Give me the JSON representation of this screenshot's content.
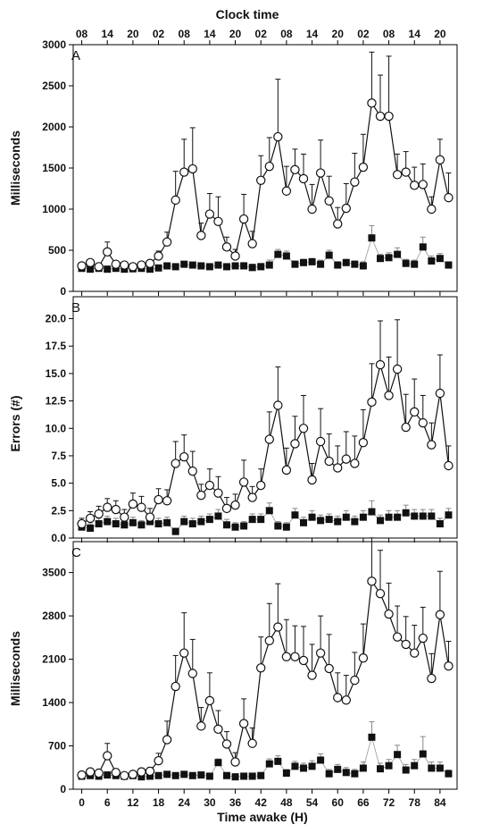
{
  "figure": {
    "top_axis_title": "Clock time",
    "bottom_axis_title": "Time awake (H)",
    "clock_ticks": [
      "08",
      "14",
      "20",
      "02",
      "08",
      "14",
      "20",
      "02",
      "08",
      "14",
      "20",
      "02",
      "08",
      "14",
      "20"
    ]
  },
  "chart_data": [
    {
      "type": "line",
      "panel": "A",
      "ylabel": "Milliseconds",
      "xlabel": "Time awake (H)",
      "xlim": [
        -2,
        88
      ],
      "ylim": [
        0,
        3000
      ],
      "yticks": [
        0,
        500,
        1000,
        1500,
        2000,
        2500,
        3000
      ],
      "ytick_labels": [
        "0",
        "500",
        "1000",
        "1500",
        "2000",
        "2500",
        "3000"
      ],
      "series": [
        {
          "marker": "open-circle",
          "x": [
            0,
            2,
            4,
            6,
            8,
            10,
            12,
            14,
            16,
            18,
            20,
            22,
            24,
            26,
            28,
            30,
            32,
            34,
            36,
            38,
            40,
            42,
            44,
            46,
            48,
            50,
            52,
            54,
            56,
            58,
            60,
            62,
            64,
            66,
            68,
            70,
            72,
            74,
            76,
            78,
            80,
            82,
            84,
            86
          ],
          "y": [
            310,
            350,
            300,
            480,
            330,
            320,
            300,
            320,
            340,
            430,
            600,
            1110,
            1450,
            1490,
            680,
            940,
            850,
            540,
            430,
            880,
            580,
            1350,
            1520,
            1880,
            1220,
            1480,
            1370,
            1000,
            1440,
            1100,
            820,
            1010,
            1330,
            1510,
            2290,
            2130,
            2130,
            1420,
            1450,
            1290,
            1300,
            1000,
            1600,
            1140
          ],
          "err": [
            20,
            20,
            20,
            120,
            30,
            30,
            20,
            30,
            40,
            60,
            120,
            350,
            400,
            500,
            150,
            250,
            300,
            120,
            80,
            300,
            150,
            300,
            350,
            700,
            300,
            250,
            300,
            300,
            400,
            300,
            200,
            300,
            350,
            400,
            620,
            500,
            730,
            250,
            250,
            220,
            250,
            150,
            250,
            300
          ]
        },
        {
          "marker": "filled-square",
          "x": [
            0,
            2,
            4,
            6,
            8,
            10,
            12,
            14,
            16,
            18,
            20,
            22,
            24,
            26,
            28,
            30,
            32,
            34,
            36,
            38,
            40,
            42,
            44,
            46,
            48,
            50,
            52,
            54,
            56,
            58,
            60,
            62,
            64,
            66,
            68,
            70,
            72,
            74,
            76,
            78,
            80,
            82,
            84,
            86
          ],
          "y": [
            280,
            270,
            280,
            270,
            280,
            270,
            275,
            280,
            270,
            285,
            310,
            300,
            330,
            320,
            310,
            300,
            320,
            300,
            310,
            310,
            290,
            300,
            320,
            450,
            430,
            330,
            350,
            360,
            330,
            440,
            320,
            350,
            330,
            310,
            650,
            400,
            410,
            450,
            340,
            330,
            540,
            370,
            400,
            320
          ],
          "err": [
            10,
            10,
            10,
            10,
            10,
            10,
            10,
            10,
            10,
            10,
            20,
            20,
            30,
            30,
            20,
            30,
            30,
            30,
            30,
            40,
            40,
            40,
            60,
            60,
            60,
            40,
            40,
            40,
            50,
            60,
            40,
            40,
            40,
            50,
            150,
            50,
            60,
            80,
            50,
            50,
            120,
            60,
            60,
            40
          ]
        }
      ]
    },
    {
      "type": "line",
      "panel": "B",
      "ylabel": "Errors (#)",
      "xlabel": "Time awake (H)",
      "xlim": [
        -2,
        88
      ],
      "ylim": [
        0,
        22
      ],
      "yticks": [
        0,
        2.5,
        5,
        7.5,
        10,
        12.5,
        15,
        17.5,
        20
      ],
      "ytick_labels": [
        "0.0",
        "2.5",
        "5.0",
        "7.5",
        "10.0",
        "12.5",
        "15.0",
        "17.5",
        "20.0"
      ],
      "series": [
        {
          "marker": "open-circle",
          "x": [
            0,
            2,
            4,
            6,
            8,
            10,
            12,
            14,
            16,
            18,
            20,
            22,
            24,
            26,
            28,
            30,
            32,
            34,
            36,
            38,
            40,
            42,
            44,
            46,
            48,
            50,
            52,
            54,
            56,
            58,
            60,
            62,
            64,
            66,
            68,
            70,
            72,
            74,
            76,
            78,
            80,
            82,
            84,
            86
          ],
          "y": [
            1.3,
            1.8,
            2.2,
            2.8,
            2.6,
            1.9,
            3.1,
            2.8,
            1.9,
            3.5,
            3.4,
            6.8,
            7.4,
            6.1,
            3.9,
            4.8,
            4.1,
            2.7,
            3.0,
            5.1,
            3.7,
            4.8,
            9.0,
            12.1,
            6.2,
            8.6,
            10.0,
            5.3,
            8.8,
            7.0,
            6.4,
            7.2,
            6.8,
            8.7,
            12.4,
            15.8,
            13.0,
            15.4,
            10.1,
            11.5,
            10.5,
            8.5,
            13.2,
            6.6
          ],
          "err": [
            0.5,
            0.6,
            0.7,
            0.8,
            0.8,
            0.7,
            1.0,
            1.0,
            0.8,
            1.0,
            1.0,
            2.0,
            2.0,
            1.8,
            1.0,
            1.5,
            1.5,
            1.0,
            1.0,
            2.0,
            1.0,
            1.5,
            2.5,
            3.5,
            2.0,
            2.5,
            3.0,
            1.5,
            3.0,
            2.5,
            2.0,
            2.5,
            2.5,
            3.0,
            3.5,
            4.0,
            3.5,
            4.5,
            3.0,
            3.0,
            2.5,
            2.0,
            3.5,
            1.8
          ]
        },
        {
          "marker": "filled-square",
          "x": [
            0,
            2,
            4,
            6,
            8,
            10,
            12,
            14,
            16,
            18,
            20,
            22,
            24,
            26,
            28,
            30,
            32,
            34,
            36,
            38,
            40,
            42,
            44,
            46,
            48,
            50,
            52,
            54,
            56,
            58,
            60,
            62,
            64,
            66,
            68,
            70,
            72,
            74,
            76,
            78,
            80,
            82,
            84,
            86
          ],
          "y": [
            1.0,
            0.9,
            1.3,
            1.5,
            1.3,
            1.2,
            1.4,
            1.2,
            1.5,
            1.3,
            1.4,
            0.6,
            1.5,
            1.3,
            1.5,
            1.7,
            2.0,
            1.2,
            1.0,
            1.1,
            1.7,
            1.7,
            2.5,
            1.1,
            1.0,
            2.1,
            1.4,
            1.9,
            1.6,
            1.7,
            1.5,
            1.9,
            1.5,
            1.9,
            2.4,
            1.6,
            1.9,
            1.9,
            2.3,
            2.0,
            2.0,
            2.0,
            1.3,
            2.1
          ],
          "err": [
            0.4,
            0.4,
            0.5,
            0.5,
            0.5,
            0.4,
            0.5,
            0.4,
            0.5,
            0.5,
            0.5,
            0.3,
            0.5,
            0.5,
            0.5,
            0.5,
            0.6,
            0.5,
            0.4,
            0.4,
            0.5,
            0.5,
            0.7,
            0.4,
            0.4,
            0.6,
            0.5,
            0.6,
            0.5,
            0.5,
            0.5,
            0.6,
            0.5,
            0.6,
            1.0,
            0.5,
            0.6,
            0.6,
            0.7,
            0.6,
            0.6,
            0.6,
            0.5,
            0.6
          ]
        }
      ]
    },
    {
      "type": "line",
      "panel": "C",
      "ylabel": "Milliseconds",
      "xlabel": "Time awake (H)",
      "xlim": [
        -2,
        88
      ],
      "ylim": [
        0,
        4000
      ],
      "yticks": [
        0,
        700,
        1400,
        2100,
        2800,
        3500
      ],
      "ytick_labels": [
        "0",
        "700",
        "1400",
        "2100",
        "2800",
        "3500"
      ],
      "xticks": [
        0,
        6,
        12,
        18,
        24,
        30,
        36,
        42,
        48,
        54,
        60,
        66,
        72,
        78,
        84
      ],
      "xtick_labels": [
        "0",
        "6",
        "12",
        "18",
        "24",
        "30",
        "36",
        "42",
        "48",
        "54",
        "60",
        "66",
        "72",
        "78",
        "84"
      ],
      "series": [
        {
          "marker": "open-circle",
          "x": [
            0,
            2,
            4,
            6,
            8,
            10,
            12,
            14,
            16,
            18,
            20,
            22,
            24,
            26,
            28,
            30,
            32,
            34,
            36,
            38,
            40,
            42,
            44,
            46,
            48,
            50,
            52,
            54,
            56,
            58,
            60,
            62,
            64,
            66,
            68,
            70,
            72,
            74,
            76,
            78,
            80,
            82,
            84,
            86
          ],
          "y": [
            230,
            280,
            260,
            540,
            270,
            220,
            240,
            280,
            290,
            460,
            800,
            1660,
            2200,
            1870,
            1020,
            1430,
            970,
            730,
            440,
            1060,
            740,
            1960,
            2400,
            2620,
            2140,
            2140,
            2080,
            1840,
            2200,
            1950,
            1480,
            1440,
            1760,
            2120,
            3360,
            3160,
            2830,
            2460,
            2340,
            2200,
            2440,
            1790,
            2820,
            1990
          ],
          "err": [
            30,
            40,
            40,
            200,
            60,
            40,
            40,
            60,
            60,
            120,
            300,
            500,
            650,
            550,
            300,
            450,
            300,
            200,
            150,
            400,
            250,
            500,
            600,
            700,
            600,
            500,
            550,
            500,
            600,
            550,
            400,
            400,
            450,
            550,
            700,
            700,
            500,
            500,
            450,
            450,
            500,
            400,
            700,
            400
          ]
        },
        {
          "marker": "filled-square",
          "x": [
            0,
            2,
            4,
            6,
            8,
            10,
            12,
            14,
            16,
            18,
            20,
            22,
            24,
            26,
            28,
            30,
            32,
            34,
            36,
            38,
            40,
            42,
            44,
            46,
            48,
            50,
            52,
            54,
            56,
            58,
            60,
            62,
            64,
            66,
            68,
            70,
            72,
            74,
            76,
            78,
            80,
            82,
            84,
            86
          ],
          "y": [
            210,
            220,
            210,
            230,
            220,
            210,
            220,
            200,
            210,
            220,
            240,
            220,
            240,
            220,
            230,
            210,
            430,
            220,
            200,
            210,
            210,
            220,
            410,
            450,
            260,
            370,
            340,
            370,
            470,
            250,
            320,
            270,
            250,
            340,
            840,
            330,
            380,
            560,
            310,
            380,
            570,
            340,
            340,
            250
          ],
          "err": [
            20,
            20,
            20,
            20,
            20,
            20,
            20,
            20,
            20,
            20,
            30,
            30,
            40,
            30,
            40,
            30,
            60,
            40,
            30,
            40,
            40,
            50,
            80,
            90,
            60,
            80,
            80,
            90,
            100,
            70,
            80,
            80,
            70,
            100,
            250,
            90,
            100,
            150,
            90,
            100,
            280,
            100,
            100,
            60
          ]
        }
      ]
    }
  ]
}
